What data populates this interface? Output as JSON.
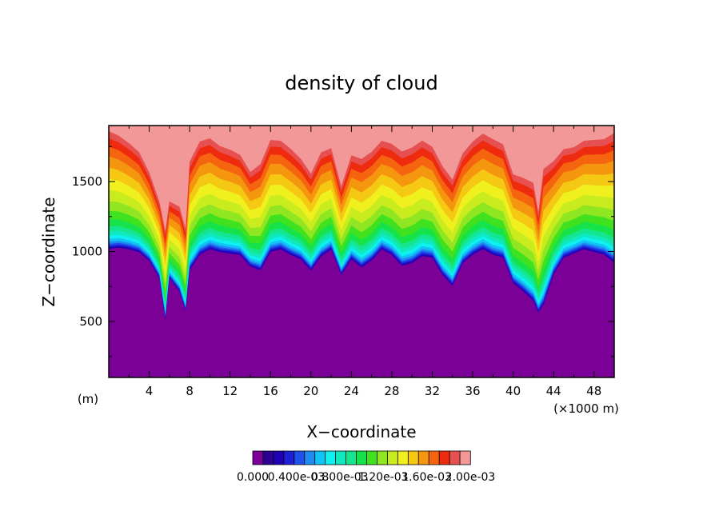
{
  "chart_data": {
    "type": "heatmap",
    "title": "density of cloud",
    "xlabel": "X−coordinate",
    "ylabel": "Z−coordinate",
    "x_unit": "(×1000 m)",
    "y_unit": "(m)",
    "xlim": [
      0,
      50
    ],
    "ylim": [
      100,
      1900
    ],
    "x_ticks": [
      4,
      8,
      12,
      16,
      20,
      24,
      28,
      32,
      36,
      40,
      44,
      48
    ],
    "y_ticks": [
      500,
      1000,
      1500
    ],
    "contour_levels": 20,
    "colorbar_colors": [
      "#7a0098",
      "#2a0095",
      "#1f00b4",
      "#1f1fd8",
      "#1e50ea",
      "#1e8cf2",
      "#12c4f5",
      "#0ff0f0",
      "#10e8c0",
      "#14e690",
      "#16e24a",
      "#40e220",
      "#90e620",
      "#c8ec1e",
      "#f0f01e",
      "#f5c814",
      "#f5960f",
      "#f5640f",
      "#ee2a0f",
      "#e65050",
      "#f29898"
    ],
    "colorbar_labels": [
      "0.000",
      "0.400e-03",
      "0.800e-03",
      "1.20e-03",
      "1.60e-03",
      "2.00e-03"
    ],
    "profile": {
      "x": [
        0,
        1,
        2,
        3,
        4,
        5,
        5.6,
        6,
        7,
        7.6,
        8,
        9,
        10,
        11,
        12,
        13,
        14,
        15,
        16,
        17,
        18,
        19,
        20,
        21,
        22,
        23,
        24,
        25,
        26,
        27,
        28,
        29,
        30,
        31,
        32,
        33,
        34,
        35,
        36,
        37,
        38,
        39,
        40,
        41,
        42,
        42.5,
        43,
        44,
        45,
        46,
        47,
        48,
        49,
        50
      ],
      "base": [
        1000,
        1010,
        1000,
        980,
        920,
        800,
        500,
        800,
        700,
        560,
        850,
        960,
        1000,
        980,
        970,
        960,
        880,
        850,
        980,
        1000,
        960,
        930,
        850,
        950,
        1000,
        820,
        930,
        870,
        920,
        1000,
        960,
        880,
        900,
        950,
        940,
        820,
        740,
        900,
        960,
        1000,
        960,
        940,
        760,
        700,
        630,
        550,
        600,
        820,
        940,
        970,
        1000,
        980,
        960,
        900
      ],
      "h": [
        1.0,
        0.95,
        0.9,
        0.85,
        0.75,
        0.65,
        0.75,
        0.65,
        0.72,
        0.7,
        0.92,
        0.96,
        0.94,
        0.9,
        0.88,
        0.85,
        0.8,
        0.9,
        0.95,
        0.92,
        0.9,
        0.85,
        0.82,
        0.88,
        0.86,
        0.75,
        0.88,
        0.92,
        0.92,
        0.92,
        0.94,
        0.97,
        0.98,
        0.98,
        0.94,
        0.92,
        0.9,
        0.93,
        0.96,
        0.98,
        0.98,
        0.96,
        0.92,
        0.96,
        1.0,
        0.85,
        1.15,
        0.96,
        0.92,
        0.9,
        0.92,
        0.95,
        0.98,
        1.1
      ]
    }
  }
}
